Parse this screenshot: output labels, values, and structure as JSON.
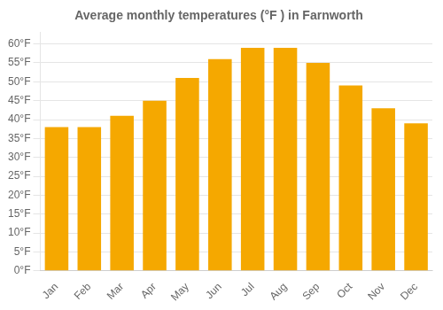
{
  "chart_data": {
    "type": "bar",
    "title": "Average monthly temperatures (°F ) in Farnworth",
    "categories": [
      "Jan",
      "Feb",
      "Mar",
      "Apr",
      "May",
      "Jun",
      "Jul",
      "Aug",
      "Sep",
      "Oct",
      "Nov",
      "Dec"
    ],
    "values": [
      38,
      38,
      41,
      45,
      51,
      56,
      59,
      59,
      55,
      49,
      43,
      39
    ],
    "color": "#F5A800",
    "ylim": [
      0,
      63
    ],
    "yticks": [
      {
        "value": 0,
        "label": "0°F"
      },
      {
        "value": 5,
        "label": "5°F"
      },
      {
        "value": 10,
        "label": "10°F"
      },
      {
        "value": 15,
        "label": "15°F"
      },
      {
        "value": 20,
        "label": "20°F"
      },
      {
        "value": 25,
        "label": "25°F"
      },
      {
        "value": 30,
        "label": "30°F"
      },
      {
        "value": 35,
        "label": "35°F"
      },
      {
        "value": 40,
        "label": "40°F"
      },
      {
        "value": 45,
        "label": "45°F"
      },
      {
        "value": 50,
        "label": "50°F"
      },
      {
        "value": 55,
        "label": "55°F"
      },
      {
        "value": 60,
        "label": "60°F"
      }
    ],
    "grid": true
  }
}
